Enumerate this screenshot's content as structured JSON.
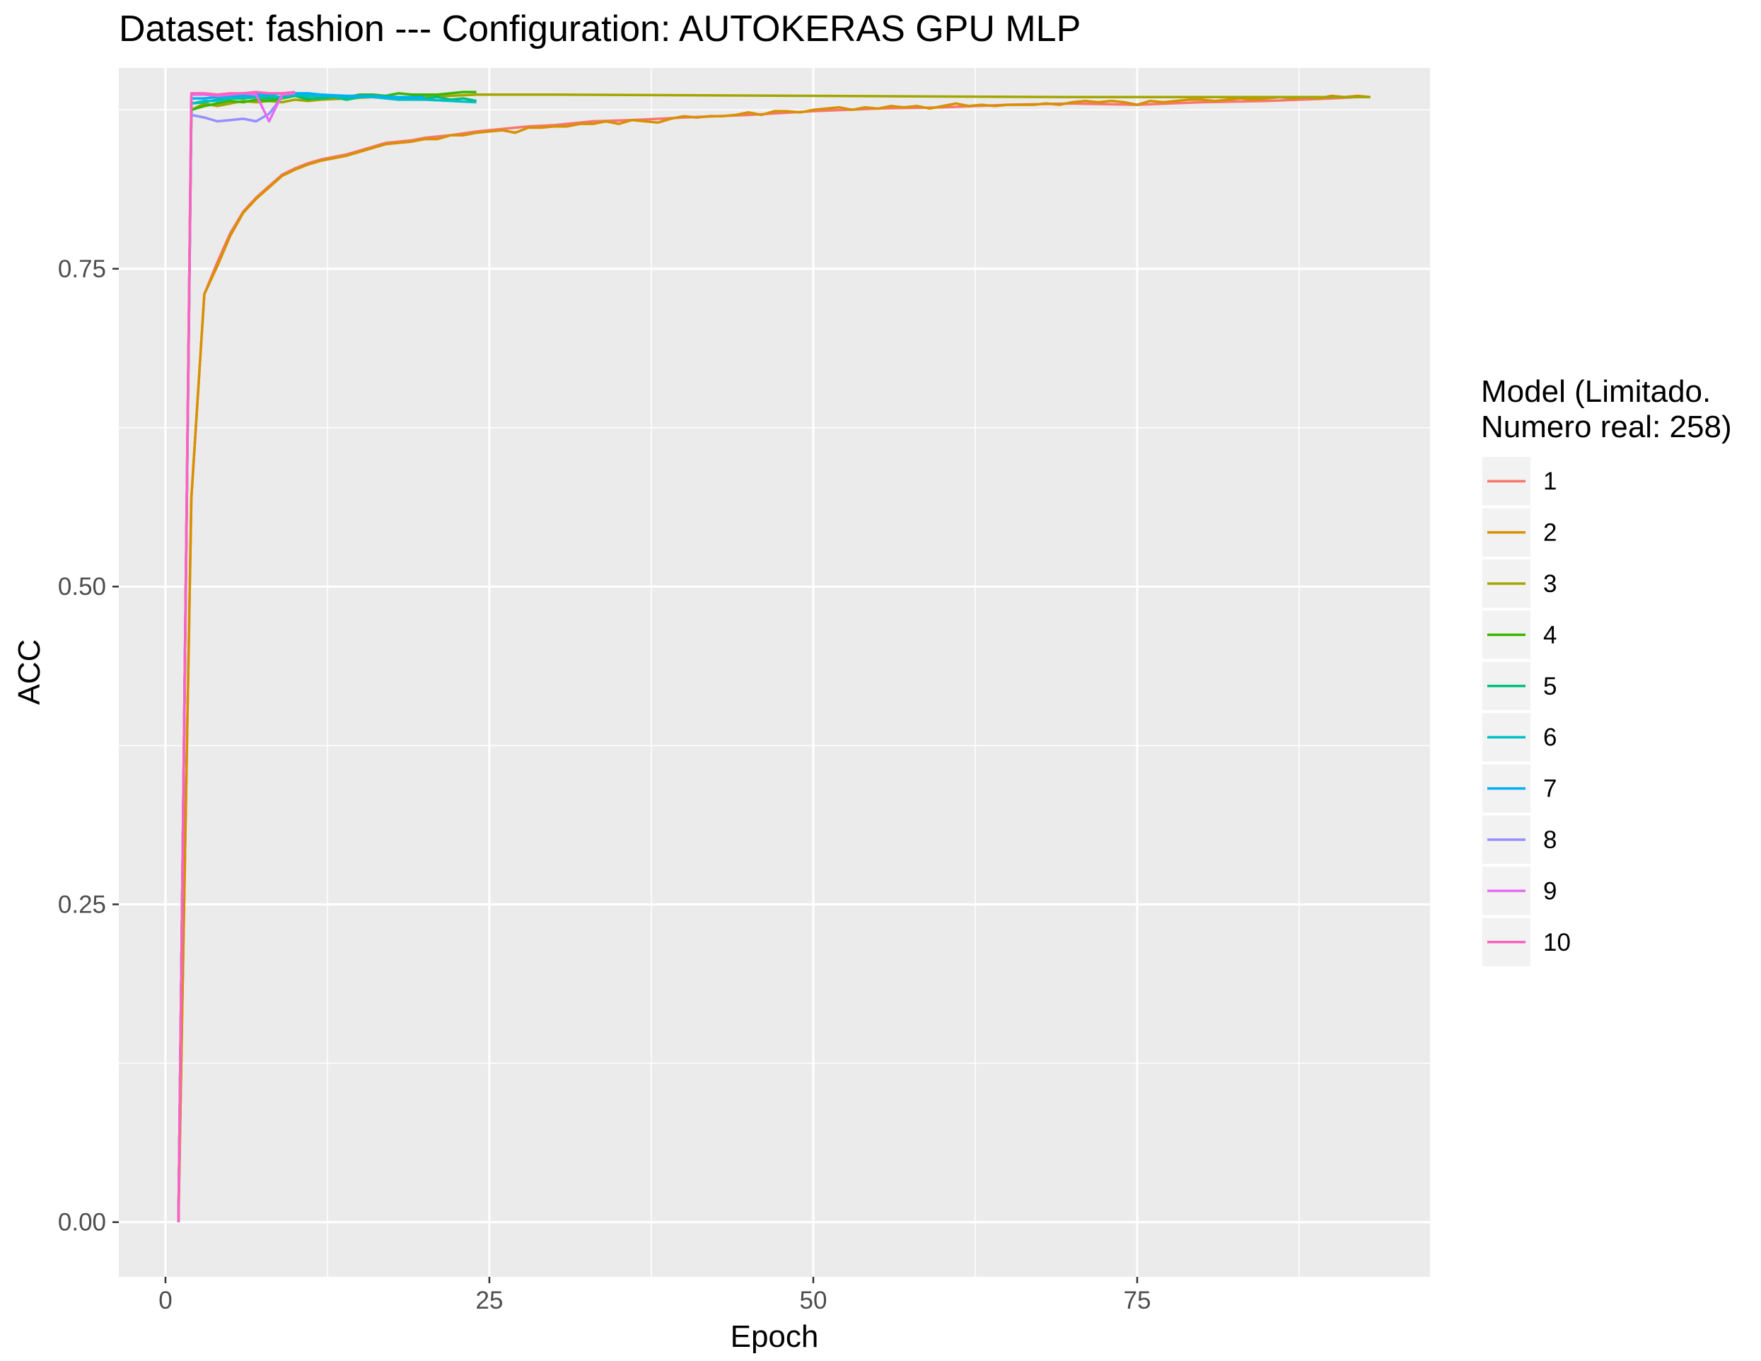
{
  "chart_data": {
    "type": "line",
    "title": "Dataset:  fashion  --- Configuration:  AUTOKERAS GPU MLP",
    "xlabel": "Epoch",
    "ylabel": "ACC",
    "xlim": [
      -3.6,
      97.6
    ],
    "ylim": [
      -0.043,
      0.908
    ],
    "x_ticks": [
      0,
      25,
      50,
      75
    ],
    "x_tick_labels": [
      "0",
      "25",
      "50",
      "75"
    ],
    "y_ticks": [
      0.0,
      0.25,
      0.5,
      0.75
    ],
    "y_tick_labels": [
      "0.00",
      "0.25",
      "0.50",
      "0.75"
    ],
    "grid": true,
    "panel_background": "#ebebeb",
    "legend_position": "right",
    "legend_title": [
      "Model (Limitado.",
      "Numero real: 258)"
    ],
    "series": [
      {
        "name": "1",
        "color": "#F8766D",
        "points": [
          [
            1,
            0.0
          ],
          [
            2,
            0.57
          ],
          [
            3,
            0.73
          ],
          [
            4,
            0.755
          ],
          [
            5,
            0.778
          ],
          [
            6,
            0.795
          ],
          [
            7,
            0.806
          ],
          [
            8,
            0.815
          ],
          [
            9,
            0.824
          ],
          [
            10,
            0.829
          ],
          [
            11,
            0.833
          ],
          [
            12,
            0.836
          ],
          [
            13,
            0.838
          ],
          [
            14,
            0.84
          ],
          [
            15,
            0.843
          ],
          [
            16,
            0.846
          ],
          [
            17,
            0.849
          ],
          [
            18,
            0.85
          ],
          [
            19,
            0.851
          ],
          [
            20,
            0.853
          ],
          [
            22,
            0.855
          ],
          [
            24,
            0.858
          ],
          [
            26,
            0.86
          ],
          [
            28,
            0.862
          ],
          [
            30,
            0.863
          ],
          [
            33,
            0.866
          ],
          [
            36,
            0.867
          ],
          [
            40,
            0.869
          ],
          [
            45,
            0.871
          ],
          [
            50,
            0.874
          ],
          [
            55,
            0.876
          ],
          [
            60,
            0.877
          ],
          [
            65,
            0.879
          ],
          [
            70,
            0.88
          ],
          [
            75,
            0.879
          ],
          [
            80,
            0.881
          ],
          [
            85,
            0.882
          ],
          [
            90,
            0.884
          ],
          [
            92,
            0.885
          ]
        ]
      },
      {
        "name": "2",
        "color": "#D89000",
        "points": [
          [
            1,
            0.0
          ],
          [
            2,
            0.57
          ],
          [
            3,
            0.73
          ],
          [
            4,
            0.752
          ],
          [
            5,
            0.776
          ],
          [
            6,
            0.794
          ],
          [
            7,
            0.805
          ],
          [
            8,
            0.814
          ],
          [
            9,
            0.823
          ],
          [
            10,
            0.828
          ],
          [
            11,
            0.832
          ],
          [
            12,
            0.835
          ],
          [
            13,
            0.837
          ],
          [
            14,
            0.839
          ],
          [
            15,
            0.842
          ],
          [
            16,
            0.845
          ],
          [
            17,
            0.848
          ],
          [
            18,
            0.849
          ],
          [
            19,
            0.85
          ],
          [
            20,
            0.852
          ],
          [
            21,
            0.852
          ],
          [
            22,
            0.855
          ],
          [
            23,
            0.855
          ],
          [
            24,
            0.857
          ],
          [
            25,
            0.858
          ],
          [
            26,
            0.859
          ],
          [
            27,
            0.857
          ],
          [
            28,
            0.861
          ],
          [
            29,
            0.861
          ],
          [
            30,
            0.862
          ],
          [
            31,
            0.862
          ],
          [
            32,
            0.864
          ],
          [
            33,
            0.864
          ],
          [
            34,
            0.866
          ],
          [
            35,
            0.864
          ],
          [
            36,
            0.867
          ],
          [
            37,
            0.866
          ],
          [
            38,
            0.865
          ],
          [
            39,
            0.868
          ],
          [
            40,
            0.87
          ],
          [
            41,
            0.869
          ],
          [
            42,
            0.87
          ],
          [
            43,
            0.87
          ],
          [
            44,
            0.871
          ],
          [
            45,
            0.873
          ],
          [
            46,
            0.871
          ],
          [
            47,
            0.874
          ],
          [
            48,
            0.874
          ],
          [
            49,
            0.873
          ],
          [
            50,
            0.875
          ],
          [
            51,
            0.876
          ],
          [
            52,
            0.877
          ],
          [
            53,
            0.875
          ],
          [
            54,
            0.877
          ],
          [
            55,
            0.876
          ],
          [
            56,
            0.878
          ],
          [
            57,
            0.877
          ],
          [
            58,
            0.878
          ],
          [
            59,
            0.876
          ],
          [
            60,
            0.878
          ],
          [
            61,
            0.88
          ],
          [
            62,
            0.878
          ],
          [
            63,
            0.879
          ],
          [
            64,
            0.878
          ],
          [
            65,
            0.879
          ],
          [
            66,
            0.879
          ],
          [
            67,
            0.879
          ],
          [
            68,
            0.88
          ],
          [
            69,
            0.879
          ],
          [
            70,
            0.881
          ],
          [
            71,
            0.882
          ],
          [
            72,
            0.881
          ],
          [
            73,
            0.882
          ],
          [
            74,
            0.881
          ],
          [
            75,
            0.879
          ],
          [
            76,
            0.882
          ],
          [
            77,
            0.881
          ],
          [
            78,
            0.882
          ],
          [
            79,
            0.883
          ],
          [
            80,
            0.883
          ],
          [
            81,
            0.882
          ],
          [
            82,
            0.883
          ],
          [
            83,
            0.884
          ],
          [
            84,
            0.883
          ],
          [
            85,
            0.884
          ],
          [
            86,
            0.885
          ],
          [
            87,
            0.884
          ],
          [
            88,
            0.885
          ],
          [
            89,
            0.884
          ],
          [
            90,
            0.886
          ],
          [
            91,
            0.885
          ],
          [
            92,
            0.886
          ],
          [
            93,
            0.885
          ]
        ]
      },
      {
        "name": "3",
        "color": "#A3A500",
        "points": [
          [
            1,
            0.0
          ],
          [
            2,
            0.875
          ],
          [
            3,
            0.88
          ],
          [
            4,
            0.878
          ],
          [
            5,
            0.88
          ],
          [
            6,
            0.882
          ],
          [
            7,
            0.881
          ],
          [
            8,
            0.882
          ],
          [
            9,
            0.881
          ],
          [
            10,
            0.883
          ],
          [
            11,
            0.882
          ],
          [
            12,
            0.883
          ],
          [
            14,
            0.884
          ],
          [
            16,
            0.885
          ],
          [
            18,
            0.884
          ],
          [
            20,
            0.885
          ],
          [
            22,
            0.886
          ],
          [
            24,
            0.887
          ],
          [
            30,
            0.887
          ],
          [
            50,
            0.886
          ],
          [
            70,
            0.885
          ],
          [
            93,
            0.885
          ]
        ]
      },
      {
        "name": "4",
        "color": "#39B600",
        "points": [
          [
            1,
            0.0
          ],
          [
            2,
            0.875
          ],
          [
            3,
            0.878
          ],
          [
            4,
            0.88
          ],
          [
            5,
            0.882
          ],
          [
            6,
            0.881
          ],
          [
            7,
            0.883
          ],
          [
            8,
            0.882
          ],
          [
            9,
            0.884
          ],
          [
            10,
            0.886
          ],
          [
            11,
            0.883
          ],
          [
            12,
            0.885
          ],
          [
            13,
            0.886
          ],
          [
            14,
            0.885
          ],
          [
            15,
            0.887
          ],
          [
            16,
            0.887
          ],
          [
            17,
            0.886
          ],
          [
            18,
            0.888
          ],
          [
            19,
            0.887
          ],
          [
            20,
            0.887
          ],
          [
            21,
            0.887
          ],
          [
            22,
            0.888
          ],
          [
            23,
            0.889
          ],
          [
            24,
            0.889
          ]
        ]
      },
      {
        "name": "5",
        "color": "#00BF7D",
        "points": [
          [
            1,
            0.0
          ],
          [
            2,
            0.88
          ],
          [
            3,
            0.881
          ],
          [
            4,
            0.883
          ],
          [
            5,
            0.884
          ],
          [
            6,
            0.884
          ],
          [
            7,
            0.885
          ],
          [
            8,
            0.884
          ],
          [
            9,
            0.885
          ],
          [
            10,
            0.886
          ],
          [
            11,
            0.884
          ],
          [
            12,
            0.884
          ],
          [
            13,
            0.885
          ],
          [
            14,
            0.883
          ],
          [
            15,
            0.885
          ],
          [
            16,
            0.886
          ],
          [
            17,
            0.885
          ],
          [
            18,
            0.884
          ],
          [
            19,
            0.884
          ],
          [
            20,
            0.884
          ],
          [
            21,
            0.885
          ],
          [
            22,
            0.883
          ],
          [
            23,
            0.884
          ],
          [
            24,
            0.882
          ]
        ]
      },
      {
        "name": "6",
        "color": "#00BFC4",
        "points": [
          [
            1,
            0.0
          ],
          [
            2,
            0.88
          ],
          [
            3,
            0.882
          ],
          [
            4,
            0.882
          ],
          [
            5,
            0.884
          ],
          [
            6,
            0.885
          ],
          [
            7,
            0.885
          ],
          [
            8,
            0.886
          ],
          [
            9,
            0.885
          ],
          [
            10,
            0.887
          ],
          [
            11,
            0.886
          ],
          [
            12,
            0.886
          ],
          [
            14,
            0.885
          ],
          [
            16,
            0.885
          ],
          [
            18,
            0.883
          ],
          [
            20,
            0.883
          ],
          [
            22,
            0.882
          ],
          [
            24,
            0.881
          ]
        ]
      },
      {
        "name": "7",
        "color": "#00B0F6",
        "points": [
          [
            1,
            0.0
          ],
          [
            2,
            0.884
          ],
          [
            3,
            0.884
          ],
          [
            4,
            0.885
          ],
          [
            5,
            0.886
          ],
          [
            6,
            0.886
          ],
          [
            7,
            0.887
          ],
          [
            8,
            0.887
          ],
          [
            9,
            0.888
          ],
          [
            10,
            0.888
          ],
          [
            11,
            0.888
          ],
          [
            12,
            0.887
          ],
          [
            14,
            0.886
          ],
          [
            16,
            0.886
          ],
          [
            18,
            0.885
          ],
          [
            20,
            0.885
          ]
        ]
      },
      {
        "name": "8",
        "color": "#9590FF",
        "points": [
          [
            1,
            0.0
          ],
          [
            2,
            0.871
          ],
          [
            3,
            0.869
          ],
          [
            4,
            0.866
          ],
          [
            5,
            0.867
          ],
          [
            6,
            0.868
          ],
          [
            7,
            0.866
          ],
          [
            8,
            0.872
          ],
          [
            9,
            0.885
          ]
        ]
      },
      {
        "name": "9",
        "color": "#E76BF3",
        "points": [
          [
            1,
            0.0
          ],
          [
            2,
            0.887
          ],
          [
            3,
            0.887
          ],
          [
            4,
            0.886
          ],
          [
            5,
            0.887
          ],
          [
            6,
            0.888
          ],
          [
            7,
            0.887
          ],
          [
            8,
            0.866
          ],
          [
            9,
            0.887
          ],
          [
            10,
            0.888
          ]
        ]
      },
      {
        "name": "10",
        "color": "#FF62BC",
        "points": [
          [
            1,
            0.0
          ],
          [
            2,
            0.888
          ],
          [
            3,
            0.888
          ],
          [
            4,
            0.887
          ],
          [
            5,
            0.888
          ],
          [
            6,
            0.888
          ],
          [
            7,
            0.889
          ],
          [
            8,
            0.888
          ],
          [
            9,
            0.888
          ],
          [
            10,
            0.889
          ]
        ]
      }
    ]
  }
}
